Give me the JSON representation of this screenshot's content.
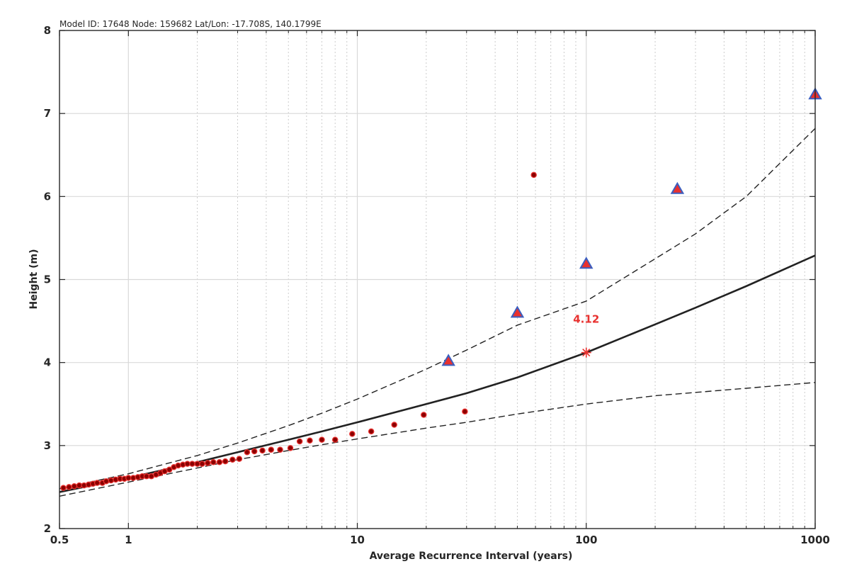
{
  "header": {
    "text": "Model ID: 17648 Node: 159682  Lat/Lon: -17.708S, 140.1799E"
  },
  "colors": {
    "axis": "#262626",
    "grid_major": "#d9d9d9",
    "grid_minor": "#cccccc",
    "observed_fill": "#8b0000",
    "observed_edge": "#e8312f",
    "triangle_fill": "#e8312f",
    "triangle_edge": "#3b5fc0",
    "marker_star": "#e8312f",
    "curve": "#222222"
  },
  "chart_data": {
    "type": "line",
    "xlabel": "Average Recurrence Interval (years)",
    "ylabel": "Height (m)",
    "xscale": "log",
    "xlim": [
      0.5,
      1000
    ],
    "ylim": [
      2,
      8
    ],
    "grid": true,
    "x_tick_labels": [
      "0.5",
      "1",
      "10",
      "100",
      "1000"
    ],
    "x_tick_values": [
      0.5,
      1,
      10,
      100,
      1000
    ],
    "y_tick_labels": [
      "2",
      "3",
      "4",
      "5",
      "6",
      "7",
      "8"
    ],
    "y_tick_values": [
      2,
      3,
      4,
      5,
      6,
      7,
      8
    ],
    "series": [
      {
        "style": "solid",
        "x": [
          0.5,
          1,
          2,
          3,
          5,
          7,
          10,
          20,
          30,
          50,
          100,
          200,
          300,
          500,
          1000
        ],
        "y": [
          2.44,
          2.61,
          2.8,
          2.92,
          3.07,
          3.17,
          3.28,
          3.5,
          3.63,
          3.82,
          4.12,
          4.46,
          4.66,
          4.92,
          5.29
        ]
      },
      {
        "style": "dashed",
        "x": [
          0.5,
          1,
          2,
          3,
          5,
          7,
          10,
          20,
          30,
          50,
          100,
          200,
          300,
          500,
          1000
        ],
        "y": [
          2.48,
          2.66,
          2.88,
          3.03,
          3.24,
          3.39,
          3.56,
          3.92,
          4.15,
          4.45,
          4.74,
          5.25,
          5.55,
          6.0,
          6.82
        ]
      },
      {
        "style": "dashed",
        "x": [
          0.5,
          1,
          2,
          3,
          5,
          7,
          10,
          20,
          30,
          50,
          100,
          200,
          300,
          500,
          1000
        ],
        "y": [
          2.39,
          2.56,
          2.73,
          2.83,
          2.94,
          3.01,
          3.08,
          3.21,
          3.28,
          3.38,
          3.5,
          3.6,
          3.64,
          3.69,
          3.76
        ]
      },
      {
        "marker": "dot",
        "x": [
          0.52,
          0.55,
          0.58,
          0.61,
          0.64,
          0.67,
          0.7,
          0.73,
          0.77,
          0.8,
          0.84,
          0.88,
          0.92,
          0.96,
          1.0,
          1.05,
          1.1,
          1.15,
          1.2,
          1.26,
          1.32,
          1.38,
          1.44,
          1.51,
          1.58,
          1.65,
          1.73,
          1.81,
          1.9,
          2.0,
          2.1,
          2.22,
          2.35,
          2.5,
          2.65,
          2.85,
          3.05,
          3.3,
          3.55,
          3.85,
          4.2,
          4.6,
          5.1,
          5.6,
          6.2,
          7.0,
          8.0,
          9.5,
          11.5,
          14.5,
          19.5,
          29.5,
          59
        ],
        "y": [
          2.49,
          2.5,
          2.51,
          2.52,
          2.52,
          2.53,
          2.54,
          2.55,
          2.55,
          2.57,
          2.58,
          2.59,
          2.6,
          2.6,
          2.61,
          2.61,
          2.62,
          2.63,
          2.63,
          2.63,
          2.65,
          2.67,
          2.69,
          2.71,
          2.74,
          2.76,
          2.77,
          2.78,
          2.78,
          2.78,
          2.78,
          2.79,
          2.8,
          2.8,
          2.81,
          2.83,
          2.84,
          2.92,
          2.93,
          2.94,
          2.95,
          2.95,
          2.97,
          3.05,
          3.06,
          3.07,
          3.07,
          3.14,
          3.17,
          3.25,
          3.37,
          3.41,
          6.26
        ]
      },
      {
        "marker": "triangle",
        "x": [
          25,
          50,
          100,
          250,
          1000
        ],
        "y": [
          4.02,
          4.6,
          5.19,
          6.09,
          7.23
        ]
      }
    ],
    "highlight": {
      "marker": "asterisk",
      "x": 100,
      "y": 4.12,
      "label": "4.12"
    }
  }
}
